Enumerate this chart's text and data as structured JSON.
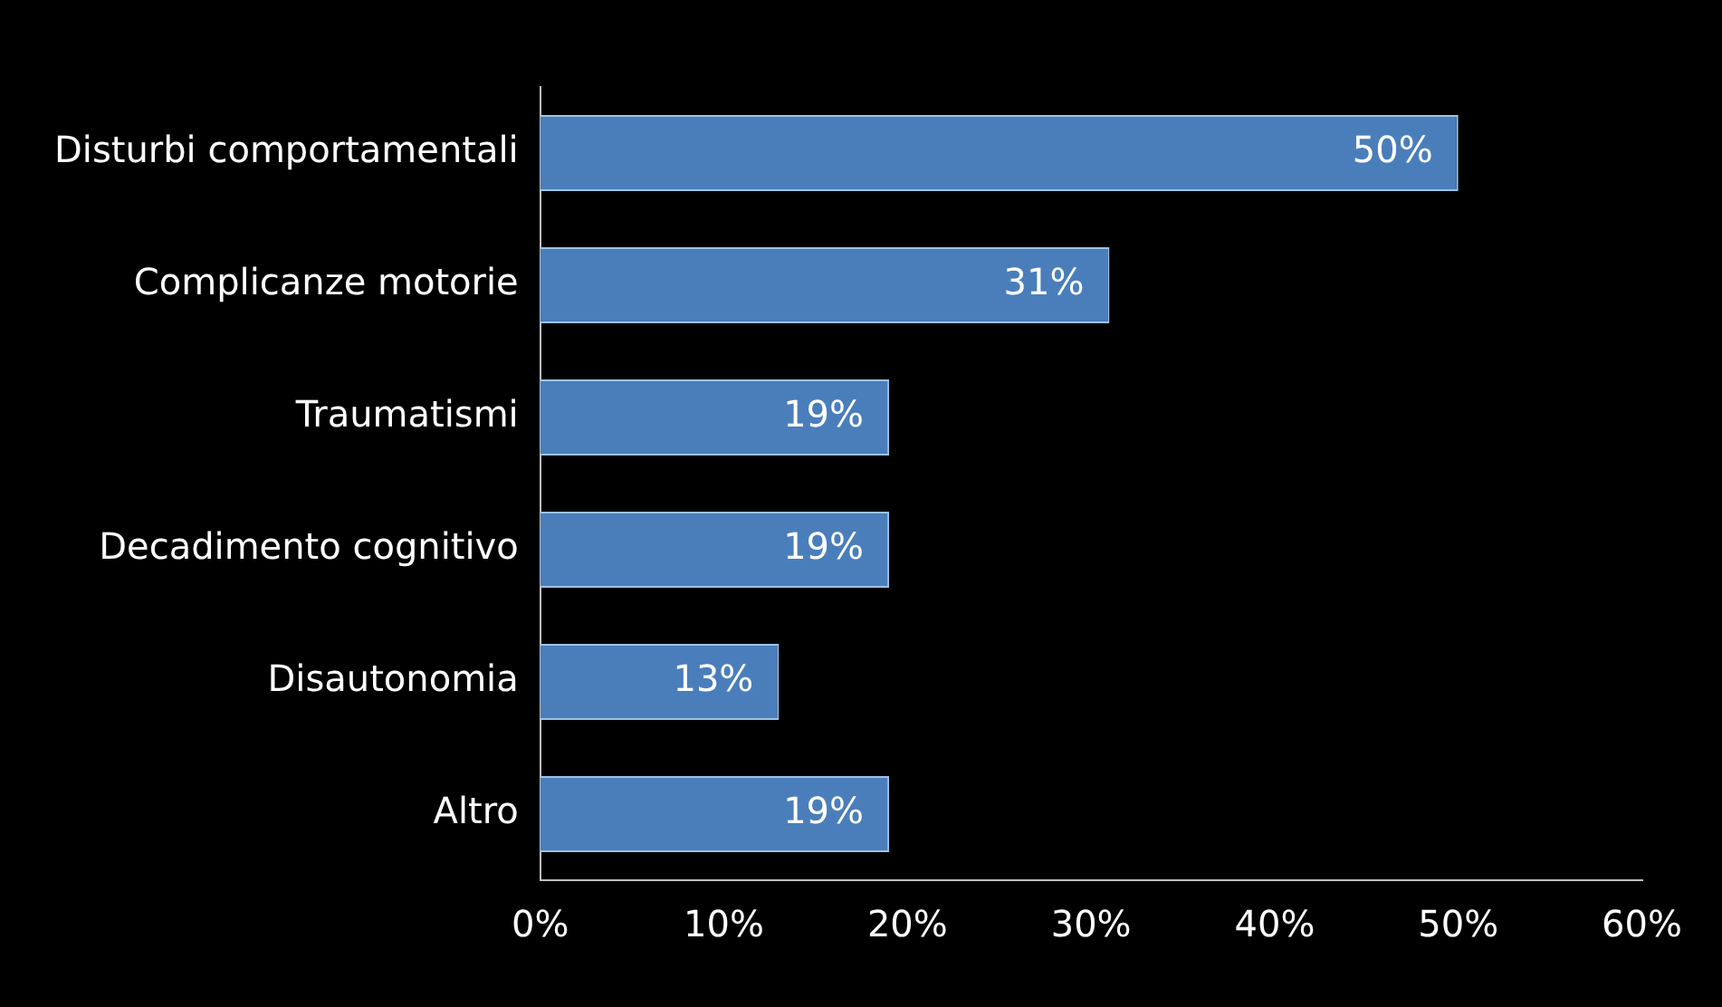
{
  "chart_data": {
    "type": "bar",
    "orientation": "horizontal",
    "categories": [
      "Disturbi comportamentali",
      "Complicanze motorie",
      "Traumatismi",
      "Decadimento cognitivo",
      "Disautonomia",
      "Altro"
    ],
    "values": [
      50,
      31,
      19,
      19,
      13,
      19
    ],
    "value_labels": [
      "50%",
      "31%",
      "19%",
      "19%",
      "13%",
      "19%"
    ],
    "color": "#4a7ebb",
    "xlim": [
      0,
      60
    ],
    "xticks": [
      {
        "value": 0,
        "label": "0%"
      },
      {
        "value": 10,
        "label": "10%"
      },
      {
        "value": 20,
        "label": "20%"
      },
      {
        "value": 30,
        "label": "30%"
      },
      {
        "value": 40,
        "label": "40%"
      },
      {
        "value": 50,
        "label": "50%"
      },
      {
        "value": 60,
        "label": "60%"
      }
    ],
    "grid": false,
    "legend": false
  }
}
